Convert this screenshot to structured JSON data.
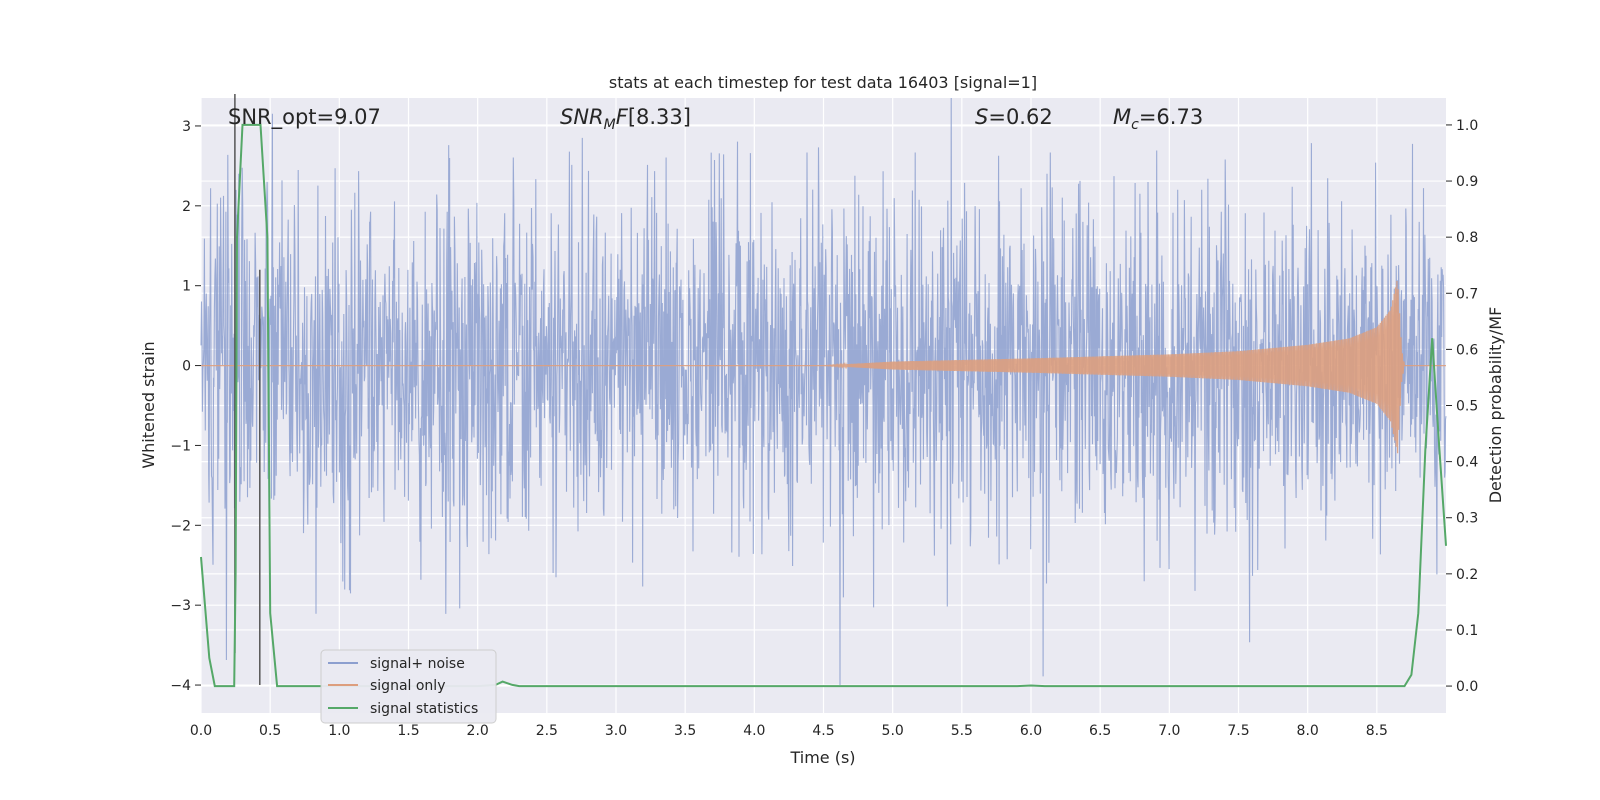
{
  "chart_data": {
    "type": "line",
    "title": "stats at each timestep for test data 16403 [signal=1]",
    "xlabel": "Time (s)",
    "ylabel_left": "Whitened strain",
    "ylabel_right": "Detection probability/MF",
    "xlim": [
      0.0,
      9.0
    ],
    "ylim_left": [
      -4.35,
      3.35
    ],
    "ylim_right": [
      -0.048,
      1.048
    ],
    "x_ticks": [
      "0.0",
      "0.5",
      "1.0",
      "1.5",
      "2.0",
      "2.5",
      "3.0",
      "3.5",
      "4.0",
      "4.5",
      "5.0",
      "5.5",
      "6.0",
      "6.5",
      "7.0",
      "7.5",
      "8.0",
      "8.5"
    ],
    "y_left_ticks": [
      "3",
      "2",
      "1",
      "0",
      "−1",
      "−2",
      "−3",
      "−4"
    ],
    "y_right_ticks": [
      "1.0",
      "0.9",
      "0.8",
      "0.7",
      "0.6",
      "0.5",
      "0.4",
      "0.3",
      "0.2",
      "0.1",
      "0.0"
    ],
    "annotations": {
      "snr_opt": "SNR_opt=9.07",
      "snr_mf": "[8.33]",
      "s_value": "=0.62",
      "mc_value": "=6.73"
    },
    "legend": {
      "position": "lower-left",
      "entries": [
        {
          "label": "signal+ noise",
          "color": "#8c9fcf"
        },
        {
          "label": "signal only",
          "color": "#dd9e7e"
        },
        {
          "label": "signal statistics",
          "color": "#55a868"
        }
      ]
    },
    "series": [
      {
        "name": "signal+ noise",
        "color": "#8c9fcf",
        "description": "whitened noisy strain, dense random fluctuation roughly within ±2.5, spikes to about ±3.3"
      },
      {
        "name": "signal only",
        "color": "#dd9e7e",
        "description": "chirp waveform growing in amplitude from ~4.5 s, peaking near 8.65 s (~1.1), then ringing down",
        "envelope": {
          "x": [
            4.5,
            5.0,
            6.0,
            7.0,
            7.5,
            8.0,
            8.3,
            8.5,
            8.6,
            8.65,
            8.68,
            8.7
          ],
          "amp": [
            0.0,
            0.05,
            0.09,
            0.14,
            0.18,
            0.26,
            0.34,
            0.48,
            0.7,
            1.1,
            0.2,
            0.0
          ]
        }
      },
      {
        "name": "signal statistics",
        "color": "#55a868",
        "axis": "right",
        "x": [
          0.0,
          0.06,
          0.1,
          0.24,
          0.25,
          0.26,
          0.3,
          0.33,
          0.43,
          0.48,
          0.5,
          0.55,
          0.6,
          2.0,
          2.13,
          2.18,
          2.25,
          2.3,
          5.9,
          6.0,
          6.1,
          8.7,
          8.75,
          8.8,
          8.85,
          8.9,
          8.95,
          9.0
        ],
        "y": [
          0.23,
          0.05,
          0.0,
          0.0,
          0.2,
          0.8,
          1.0,
          1.0,
          1.0,
          0.8,
          0.13,
          0.0,
          0.0,
          0.0,
          0.002,
          0.008,
          0.002,
          0.0,
          0.0,
          0.001,
          0.0,
          0.0,
          0.02,
          0.13,
          0.42,
          0.62,
          0.43,
          0.25
        ]
      }
    ],
    "vertical_markers": [
      {
        "x": 0.245,
        "y_left": [
          -3.6,
          3.4
        ],
        "color": "#555555"
      },
      {
        "x": 0.425,
        "y_left": [
          -4.0,
          1.2
        ],
        "color": "#555555"
      }
    ]
  }
}
